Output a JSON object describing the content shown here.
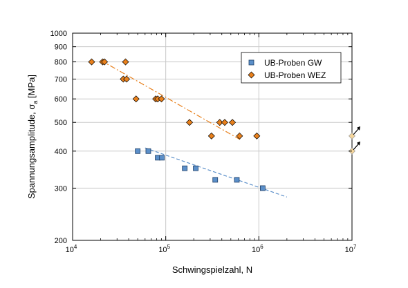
{
  "chart_data": {
    "type": "scatter",
    "xlabel": "Schwingspielzahl, N",
    "ylabel_main": "Spannungsamplitude, σ",
    "ylabel_sub": "a",
    "ylabel_unit": " [MPa]",
    "xscale": "log",
    "yscale": "log",
    "xlim": [
      10000,
      10000000
    ],
    "ylim": [
      200,
      1000
    ],
    "grid": true,
    "legend_position": "top-right",
    "x_ticks": [
      {
        "value": 10000,
        "base": "10",
        "exp": "4"
      },
      {
        "value": 100000,
        "base": "10",
        "exp": "5"
      },
      {
        "value": 1000000,
        "base": "10",
        "exp": "6"
      },
      {
        "value": 10000000,
        "base": "10",
        "exp": "7"
      }
    ],
    "y_ticks": [
      200,
      300,
      400,
      500,
      600,
      700,
      800,
      900,
      1000
    ],
    "y_tick_labels": [
      "200",
      "300",
      "400",
      "500",
      "600",
      "700",
      "800",
      "900",
      "1000"
    ],
    "series": [
      {
        "name": "UB-Proben GW",
        "marker": "square",
        "color": "#5b8fc9",
        "points": [
          {
            "x": 50000,
            "y": 400
          },
          {
            "x": 65000,
            "y": 400
          },
          {
            "x": 82000,
            "y": 380
          },
          {
            "x": 91000,
            "y": 380
          },
          {
            "x": 160000,
            "y": 350
          },
          {
            "x": 210000,
            "y": 350
          },
          {
            "x": 340000,
            "y": 320
          },
          {
            "x": 580000,
            "y": 320
          },
          {
            "x": 1100000,
            "y": 300
          }
        ],
        "trend": {
          "color": "#5b8fc9",
          "style": "dashed",
          "from": {
            "x": 60000,
            "y": 410
          },
          "to": {
            "x": 2000000,
            "y": 280
          }
        }
      },
      {
        "name": "UB-Proben WEZ",
        "marker": "diamond",
        "color": "#e8801c",
        "points": [
          {
            "x": 16000,
            "y": 800
          },
          {
            "x": 21000,
            "y": 800
          },
          {
            "x": 22000,
            "y": 800
          },
          {
            "x": 37000,
            "y": 800
          },
          {
            "x": 35000,
            "y": 700
          },
          {
            "x": 38000,
            "y": 700
          },
          {
            "x": 48000,
            "y": 600
          },
          {
            "x": 78000,
            "y": 600
          },
          {
            "x": 82000,
            "y": 600
          },
          {
            "x": 90000,
            "y": 600
          },
          {
            "x": 180000,
            "y": 500
          },
          {
            "x": 380000,
            "y": 500
          },
          {
            "x": 430000,
            "y": 500
          },
          {
            "x": 520000,
            "y": 500
          },
          {
            "x": 310000,
            "y": 450
          },
          {
            "x": 620000,
            "y": 450
          },
          {
            "x": 950000,
            "y": 450
          }
        ],
        "trend": {
          "color": "#e8801c",
          "style": "dash-dot",
          "from": {
            "x": 20000,
            "y": 810
          },
          "to": {
            "x": 650000,
            "y": 435
          }
        }
      },
      {
        "name": "",
        "marker": "diamond-open",
        "color": "#f5d59a",
        "points": [
          {
            "x": 10000000,
            "y": 450,
            "runout": true
          },
          {
            "x": 10000000,
            "y": 400,
            "runout": true
          }
        ]
      }
    ]
  }
}
